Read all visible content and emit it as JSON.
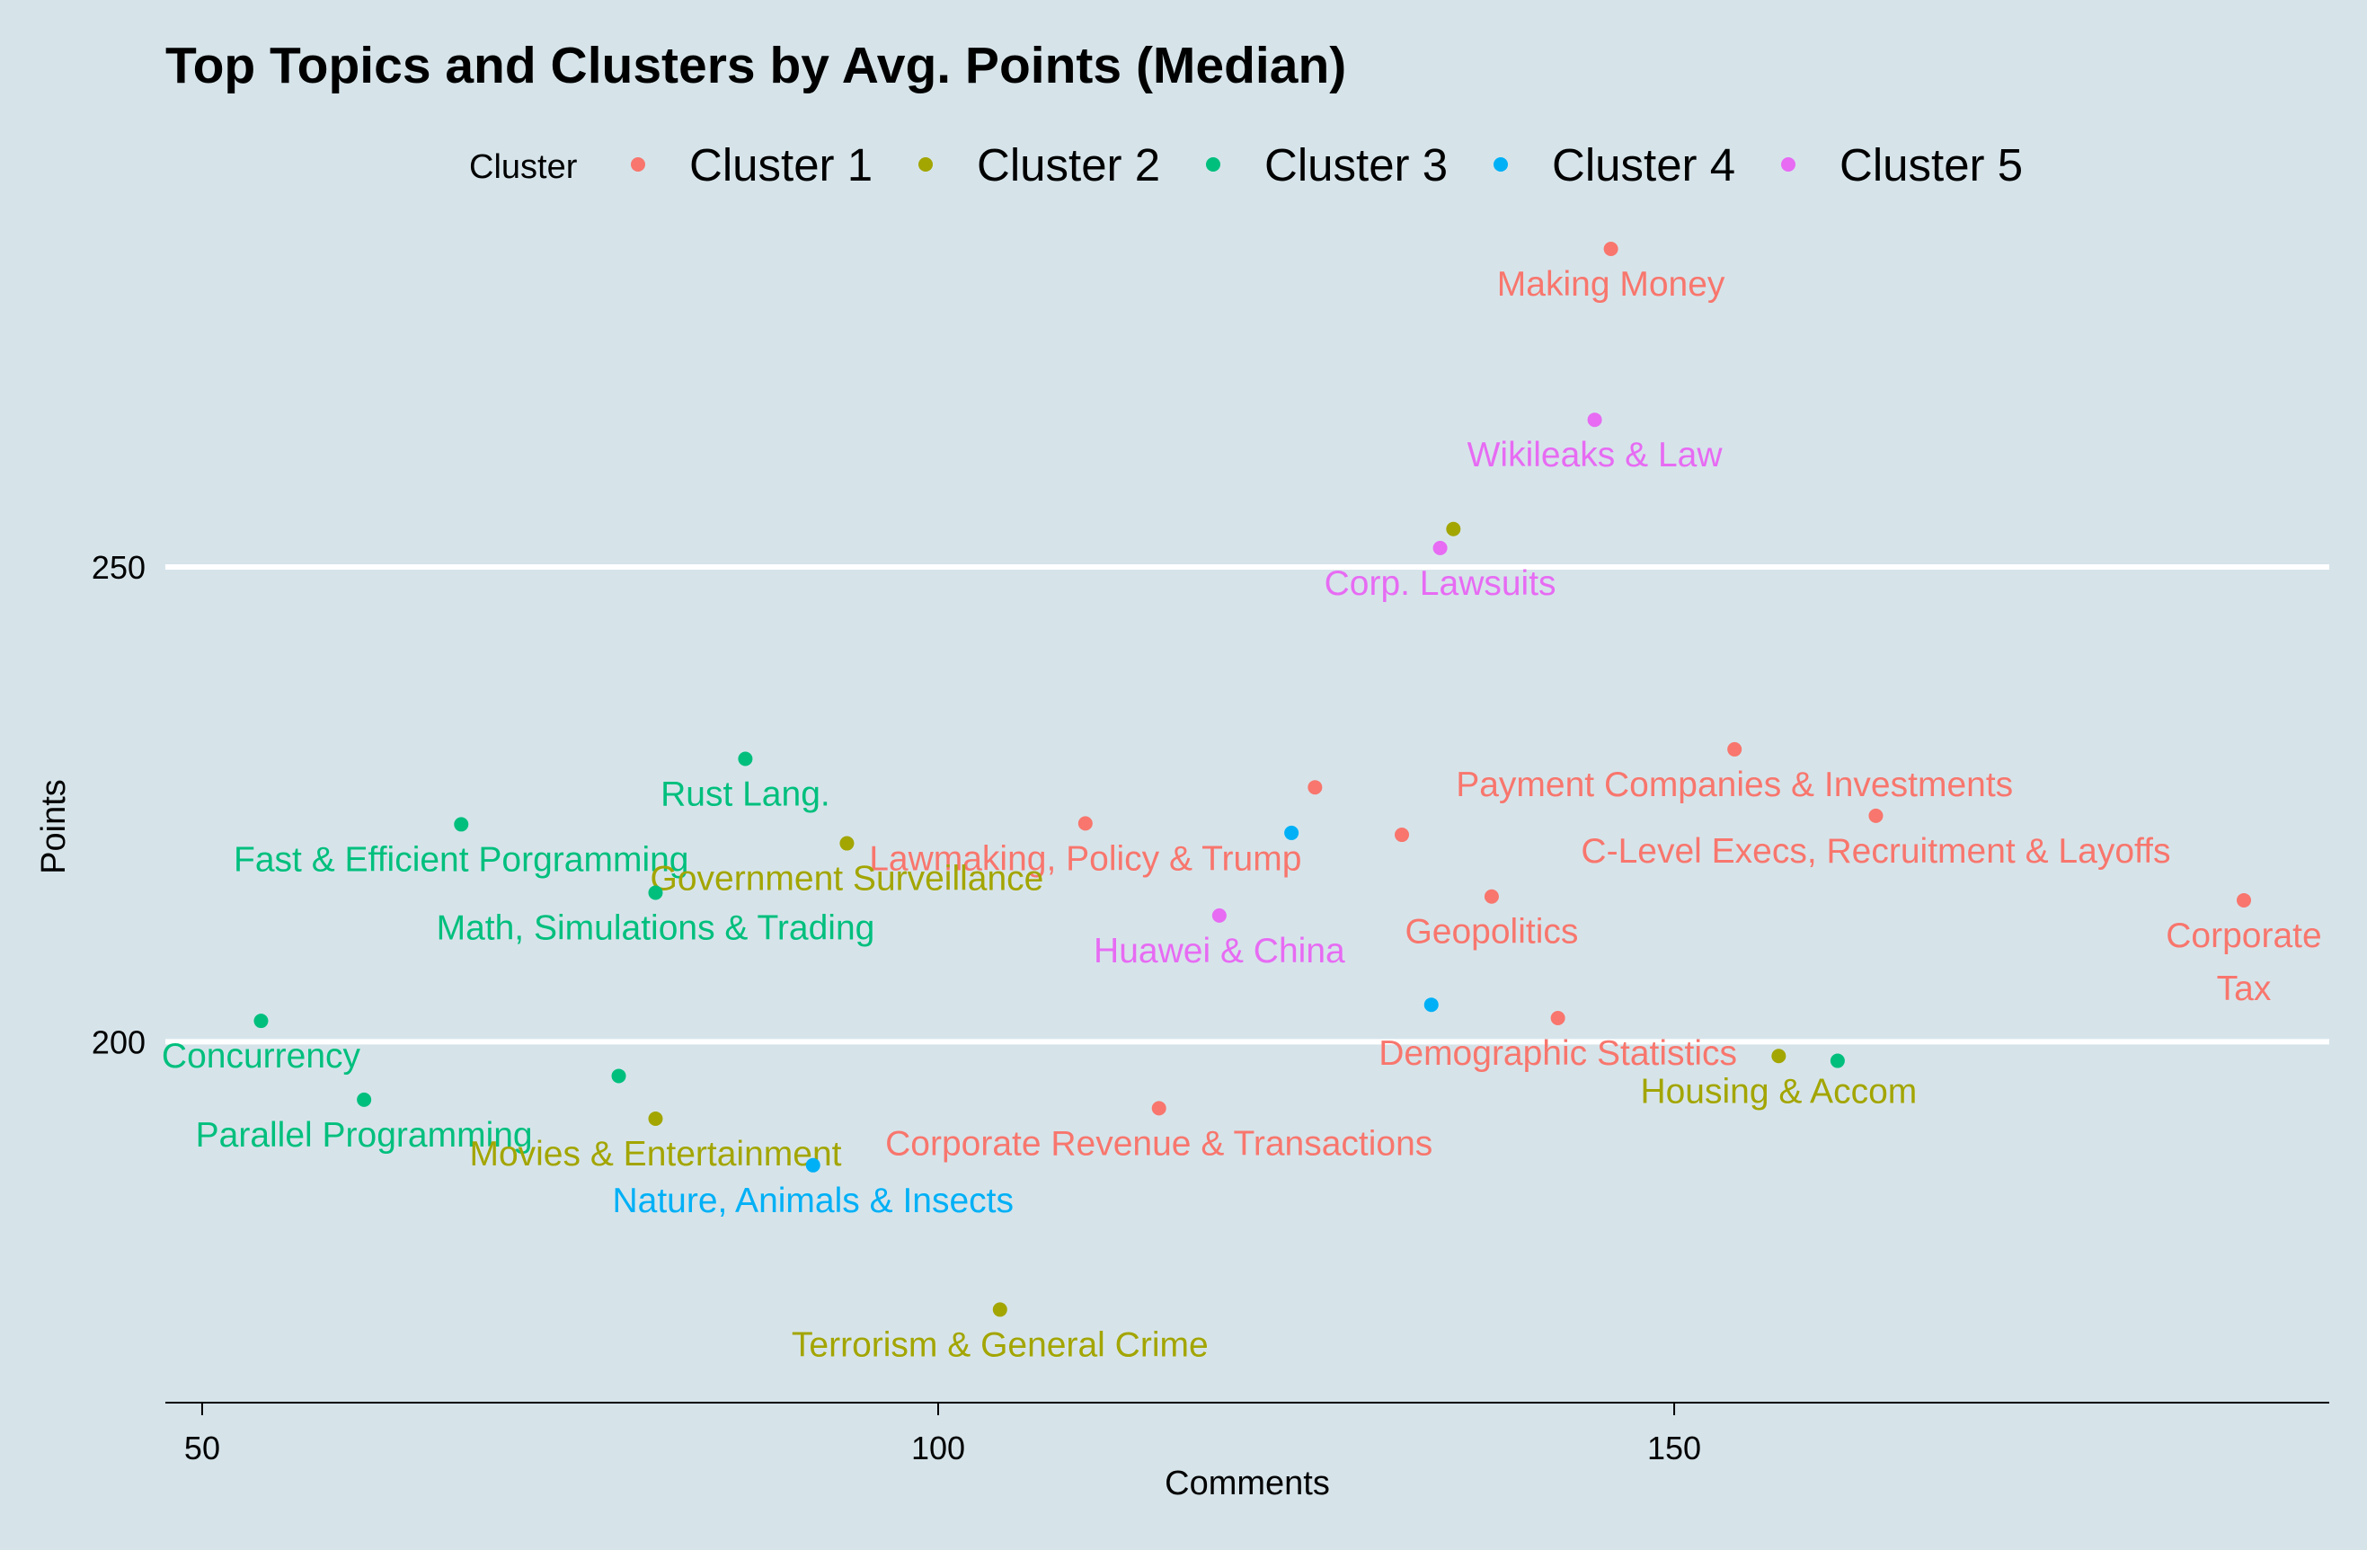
{
  "chart_data": {
    "type": "scatter",
    "title": "Top Topics and Clusters by Avg. Points (Median)",
    "xlabel": "Comments",
    "ylabel": "Points",
    "xlim": [
      47.5,
      194.5
    ],
    "ylim": [
      162,
      287
    ],
    "x_ticks": [
      50,
      100,
      150
    ],
    "y_ticks": [
      200,
      250
    ],
    "grid": "horizontal major lines only",
    "legend": {
      "title": "Cluster",
      "position": "top",
      "entries": [
        {
          "name": "Cluster 1",
          "color": "#f8766d"
        },
        {
          "name": "Cluster 2",
          "color": "#a3a500"
        },
        {
          "name": "Cluster 3",
          "color": "#00bf7d"
        },
        {
          "name": "Cluster 4",
          "color": "#00b0f6"
        },
        {
          "name": "Cluster 5",
          "color": "#e76bf3"
        }
      ]
    },
    "points": [
      {
        "cluster": 0,
        "x": 145.7,
        "y": 283.5,
        "label": "Making Money"
      },
      {
        "cluster": 4,
        "x": 144.6,
        "y": 265.5,
        "label": "Wikileaks & Law"
      },
      {
        "cluster": 1,
        "x": 135.0,
        "y": 254.0,
        "label": ""
      },
      {
        "cluster": 4,
        "x": 134.1,
        "y": 252.0,
        "label": "Corp. Lawsuits"
      },
      {
        "cluster": 0,
        "x": 154.1,
        "y": 230.8,
        "label": "Payment Companies & Investments"
      },
      {
        "cluster": 2,
        "x": 86.9,
        "y": 229.8,
        "label": "Rust Lang."
      },
      {
        "cluster": 0,
        "x": 125.6,
        "y": 226.8,
        "label": ""
      },
      {
        "cluster": 0,
        "x": 110.0,
        "y": 223.0,
        "label": "Lawmaking, Policy & Trump"
      },
      {
        "cluster": 0,
        "x": 163.7,
        "y": 223.8,
        "label": "C-Level Execs, Recruitment & Layoffs"
      },
      {
        "cluster": 2,
        "x": 67.6,
        "y": 222.9,
        "label": "Fast & Efficient Porgramming"
      },
      {
        "cluster": 3,
        "x": 124.0,
        "y": 222.0,
        "label": ""
      },
      {
        "cluster": 0,
        "x": 131.5,
        "y": 221.8,
        "label": ""
      },
      {
        "cluster": 1,
        "x": 93.8,
        "y": 220.9,
        "label": "Government Surveillance"
      },
      {
        "cluster": 2,
        "x": 80.8,
        "y": 215.7,
        "label": "Math, Simulations & Trading"
      },
      {
        "cluster": 0,
        "x": 137.6,
        "y": 215.3,
        "label": "Geopolitics"
      },
      {
        "cluster": 0,
        "x": 188.7,
        "y": 214.9,
        "label": "Corporate|Tax"
      },
      {
        "cluster": 4,
        "x": 119.1,
        "y": 213.3,
        "label": "Huawei & China"
      },
      {
        "cluster": 3,
        "x": 133.5,
        "y": 203.9,
        "label": ""
      },
      {
        "cluster": 0,
        "x": 142.1,
        "y": 202.5,
        "label": "Demographic Statistics"
      },
      {
        "cluster": 2,
        "x": 54.0,
        "y": 202.2,
        "label": "Concurrency"
      },
      {
        "cluster": 1,
        "x": 157.1,
        "y": 198.5,
        "label": "Housing & Accom"
      },
      {
        "cluster": 2,
        "x": 161.1,
        "y": 198.0,
        "label": ""
      },
      {
        "cluster": 2,
        "x": 78.3,
        "y": 196.4,
        "label": ""
      },
      {
        "cluster": 2,
        "x": 61.0,
        "y": 193.9,
        "label": "Parallel Programming"
      },
      {
        "cluster": 0,
        "x": 115.0,
        "y": 193.0,
        "label": "Corporate Revenue & Transactions"
      },
      {
        "cluster": 1,
        "x": 80.8,
        "y": 191.9,
        "label": "Movies & Entertainment"
      },
      {
        "cluster": 3,
        "x": 91.5,
        "y": 187.0,
        "label": "Nature, Animals & Insects"
      },
      {
        "cluster": 1,
        "x": 104.2,
        "y": 171.8,
        "label": "Terrorism & General Crime"
      }
    ]
  }
}
